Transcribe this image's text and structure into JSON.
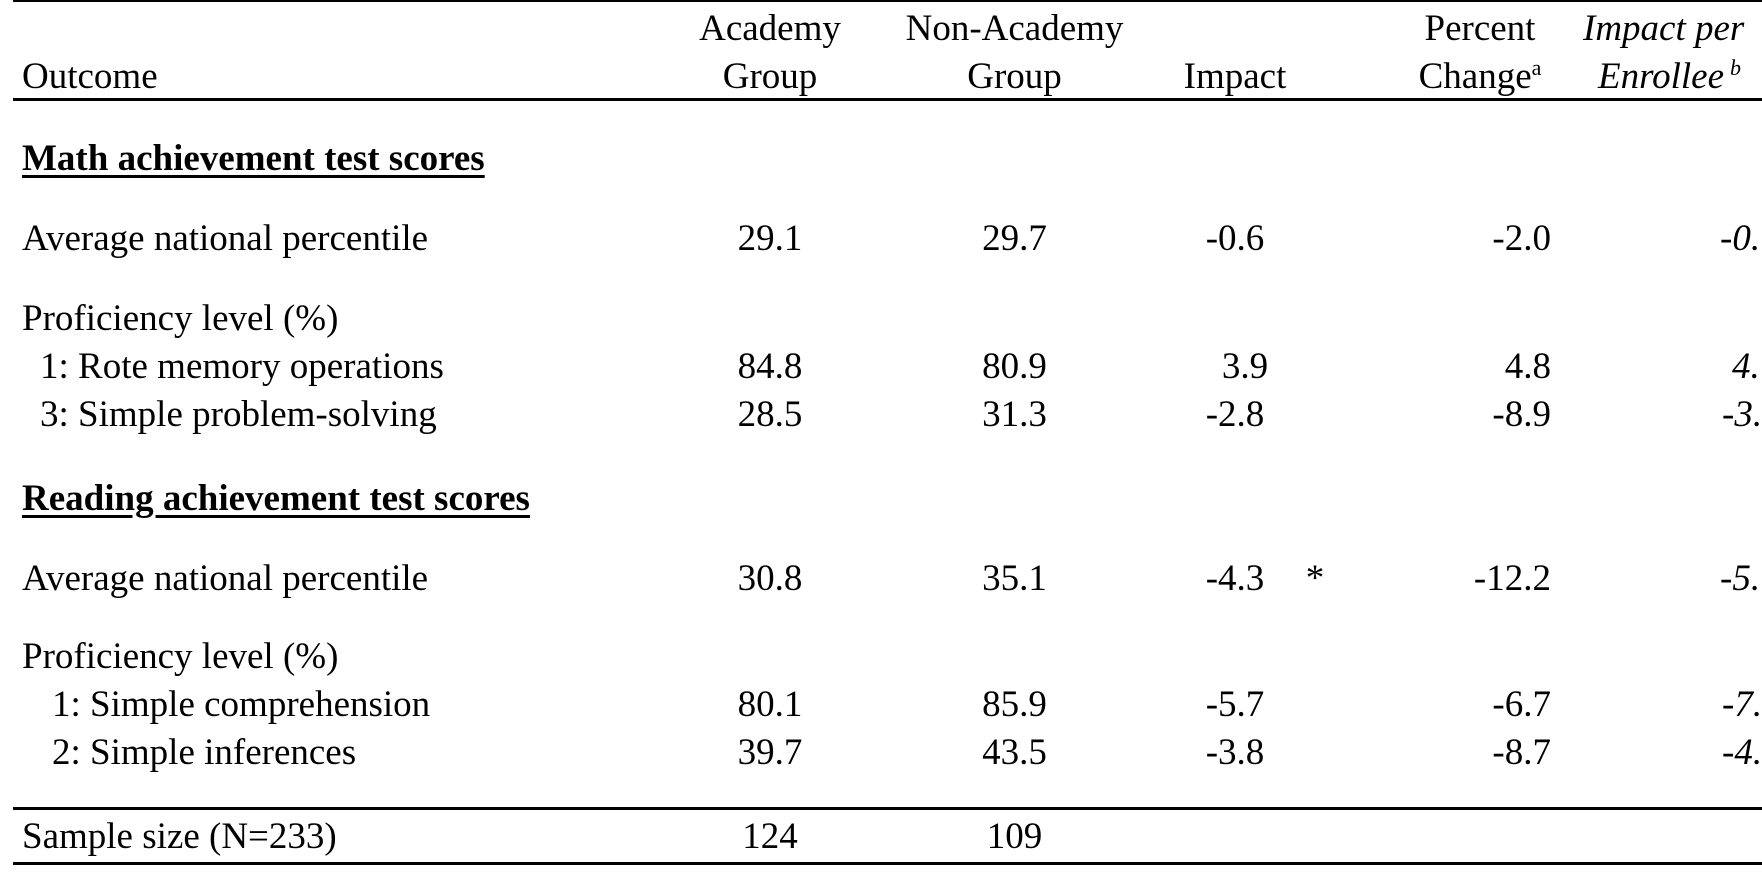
{
  "headers": {
    "outcome": "Outcome",
    "academy": [
      "Academy",
      "Group"
    ],
    "non_academy": [
      "Non-Academy",
      "Group"
    ],
    "impact": "Impact",
    "percent_change": [
      "Percent",
      "Change",
      "a"
    ],
    "impact_per_enrollee": [
      "Impact per",
      "Enrollee",
      "b"
    ]
  },
  "sections": [
    {
      "title": "Math achievement test scores",
      "avg": {
        "label": "Average national percentile",
        "academy": "29.1",
        "non_academy": "29.7",
        "impact": "-0.6",
        "sig": "",
        "pct": "-2.0",
        "enrollee": "-0."
      },
      "prof_label": "Proficiency level (%)",
      "levels": [
        {
          "label": "1: Rote memory operations",
          "academy": "84.8",
          "non_academy": "80.9",
          "impact": "3.9",
          "pct": "4.8",
          "enrollee": "4."
        },
        {
          "label": "3: Simple problem-solving",
          "academy": "28.5",
          "non_academy": "31.3",
          "impact": "-2.8",
          "pct": "-8.9",
          "enrollee": "-3."
        }
      ]
    },
    {
      "title": "Reading achievement test scores",
      "avg": {
        "label": "Average national percentile",
        "academy": "30.8",
        "non_academy": "35.1",
        "impact": "-4.3",
        "sig": "*",
        "pct": "-12.2",
        "enrollee": "-5."
      },
      "prof_label": "Proficiency level (%)",
      "levels": [
        {
          "label": "1: Simple comprehension",
          "academy": "80.1",
          "non_academy": "85.9",
          "impact": "-5.7",
          "pct": "-6.7",
          "enrollee": "-7."
        },
        {
          "label": "2: Simple inferences",
          "academy": "39.7",
          "non_academy": "43.5",
          "impact": "-3.8",
          "pct": "-8.7",
          "enrollee": "-4."
        }
      ]
    }
  ],
  "sample": {
    "label": "Sample size (N=233)",
    "academy": "124",
    "non_academy": "109"
  }
}
